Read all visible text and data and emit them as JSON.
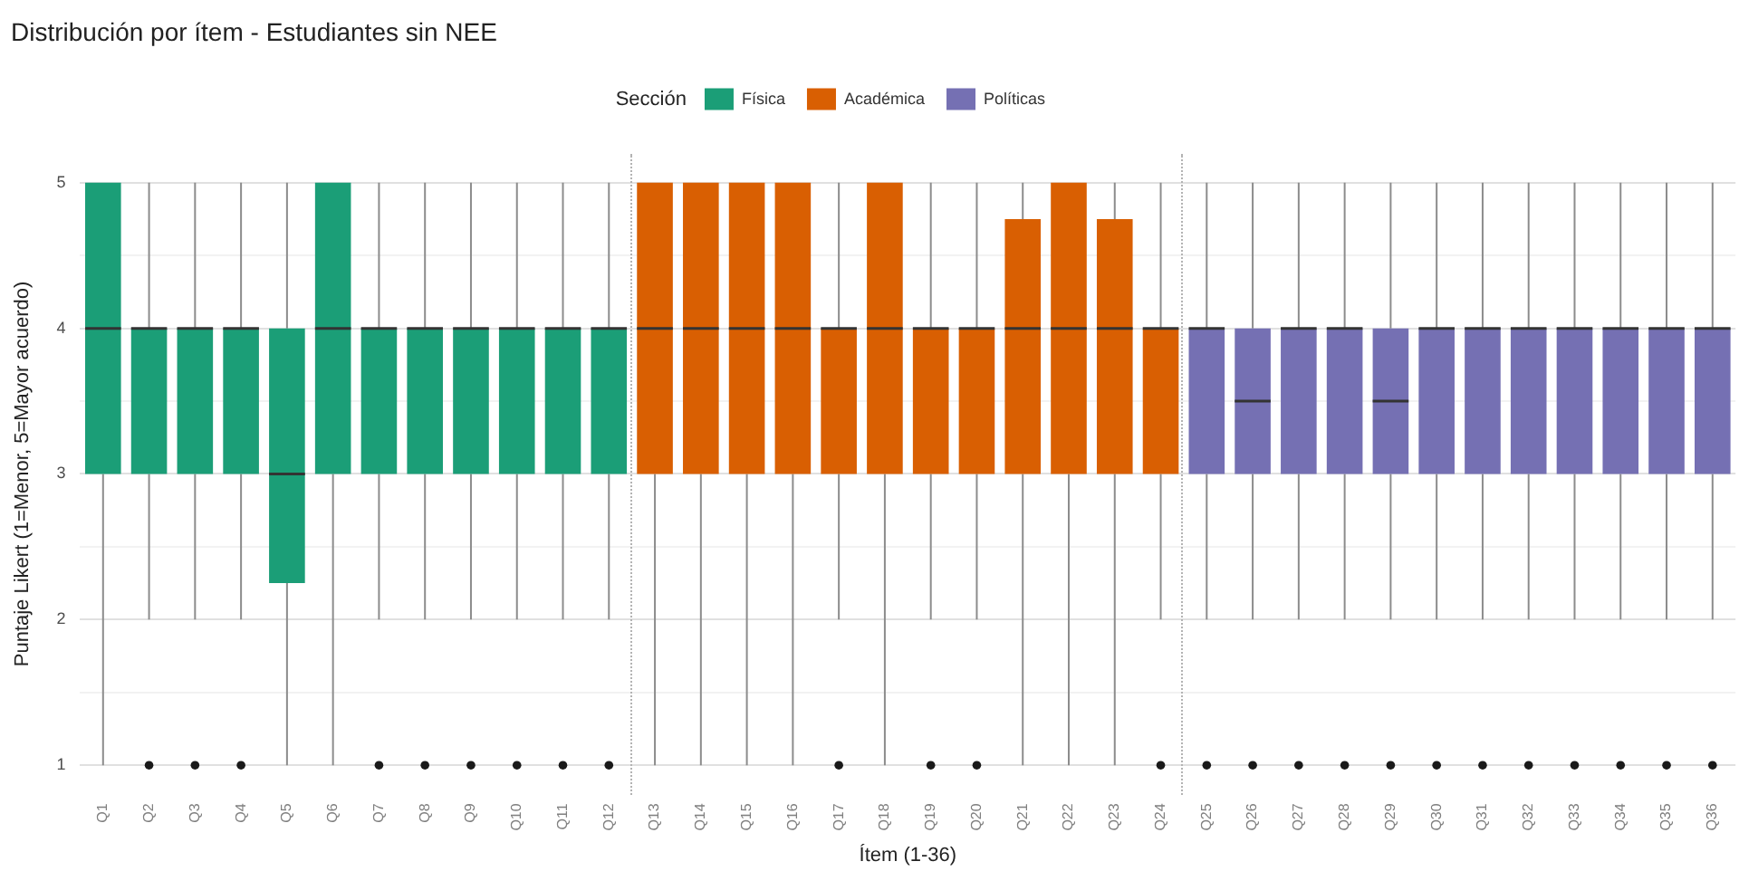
{
  "chart_data": {
    "type": "box",
    "title": "Distribución por ítem - Estudiantes sin NEE",
    "xlabel": "Ítem (1-36)",
    "ylabel": "Puntaje Likert (1=Menor, 5=Mayor acuerdo)",
    "legend_title": "Sección",
    "legend": "top",
    "grid": "y",
    "categories": [
      "Q1",
      "Q2",
      "Q3",
      "Q4",
      "Q5",
      "Q6",
      "Q7",
      "Q8",
      "Q9",
      "Q10",
      "Q11",
      "Q12",
      "Q13",
      "Q14",
      "Q15",
      "Q16",
      "Q17",
      "Q18",
      "Q19",
      "Q20",
      "Q21",
      "Q22",
      "Q23",
      "Q24",
      "Q25",
      "Q26",
      "Q27",
      "Q28",
      "Q29",
      "Q30",
      "Q31",
      "Q32",
      "Q33",
      "Q34",
      "Q35",
      "Q36"
    ],
    "series": [
      {
        "name": "Física",
        "color": "#1b9e77",
        "boxes": [
          {
            "low": 1,
            "q1": 3,
            "median": 4,
            "q3": 5,
            "high": 5
          },
          {
            "low": 2,
            "q1": 3,
            "median": 4,
            "q3": 4,
            "high": 5,
            "outliers": [
              1
            ]
          },
          {
            "low": 2,
            "q1": 3,
            "median": 4,
            "q3": 4,
            "high": 5,
            "outliers": [
              1
            ]
          },
          {
            "low": 2,
            "q1": 3,
            "median": 4,
            "q3": 4,
            "high": 5,
            "outliers": [
              1
            ]
          },
          {
            "low": 1,
            "q1": 2.25,
            "median": 3,
            "q3": 4,
            "high": 5
          },
          {
            "low": 1,
            "q1": 3,
            "median": 4,
            "q3": 5,
            "high": 5
          },
          {
            "low": 2,
            "q1": 3,
            "median": 4,
            "q3": 4,
            "high": 5,
            "outliers": [
              1
            ]
          },
          {
            "low": 2,
            "q1": 3,
            "median": 4,
            "q3": 4,
            "high": 5,
            "outliers": [
              1
            ]
          },
          {
            "low": 2,
            "q1": 3,
            "median": 4,
            "q3": 4,
            "high": 5,
            "outliers": [
              1
            ]
          },
          {
            "low": 2,
            "q1": 3,
            "median": 4,
            "q3": 4,
            "high": 5,
            "outliers": [
              1
            ]
          },
          {
            "low": 2,
            "q1": 3,
            "median": 4,
            "q3": 4,
            "high": 5,
            "outliers": [
              1
            ]
          },
          {
            "low": 2,
            "q1": 3,
            "median": 4,
            "q3": 4,
            "high": 5,
            "outliers": [
              1
            ]
          },
          null,
          null,
          null,
          null,
          null,
          null,
          null,
          null,
          null,
          null,
          null,
          null,
          null,
          null,
          null,
          null,
          null,
          null,
          null,
          null,
          null,
          null,
          null,
          null
        ]
      },
      {
        "name": "Académica",
        "color": "#d95f02",
        "boxes": [
          null,
          null,
          null,
          null,
          null,
          null,
          null,
          null,
          null,
          null,
          null,
          null,
          {
            "low": 1,
            "q1": 3,
            "median": 4,
            "q3": 5,
            "high": 5
          },
          {
            "low": 1,
            "q1": 3,
            "median": 4,
            "q3": 5,
            "high": 5
          },
          {
            "low": 1,
            "q1": 3,
            "median": 4,
            "q3": 5,
            "high": 5
          },
          {
            "low": 1,
            "q1": 3,
            "median": 4,
            "q3": 5,
            "high": 5
          },
          {
            "low": 2,
            "q1": 3,
            "median": 4,
            "q3": 4,
            "high": 5,
            "outliers": [
              1
            ]
          },
          {
            "low": 1,
            "q1": 3,
            "median": 4,
            "q3": 5,
            "high": 5
          },
          {
            "low": 2,
            "q1": 3,
            "median": 4,
            "q3": 4,
            "high": 5,
            "outliers": [
              1
            ]
          },
          {
            "low": 2,
            "q1": 3,
            "median": 4,
            "q3": 4,
            "high": 5,
            "outliers": [
              1
            ]
          },
          {
            "low": 1,
            "q1": 3,
            "median": 4,
            "q3": 4.75,
            "high": 5
          },
          {
            "low": 1,
            "q1": 3,
            "median": 4,
            "q3": 5,
            "high": 5
          },
          {
            "low": 1,
            "q1": 3,
            "median": 4,
            "q3": 4.75,
            "high": 5
          },
          {
            "low": 2,
            "q1": 3,
            "median": 4,
            "q3": 4,
            "high": 5,
            "outliers": [
              1
            ]
          },
          null,
          null,
          null,
          null,
          null,
          null,
          null,
          null,
          null,
          null,
          null,
          null
        ]
      },
      {
        "name": "Políticas",
        "color": "#7570b3",
        "boxes": [
          null,
          null,
          null,
          null,
          null,
          null,
          null,
          null,
          null,
          null,
          null,
          null,
          null,
          null,
          null,
          null,
          null,
          null,
          null,
          null,
          null,
          null,
          null,
          null,
          {
            "low": 2,
            "q1": 3,
            "median": 4,
            "q3": 4,
            "high": 5,
            "outliers": [
              1
            ]
          },
          {
            "low": 2,
            "q1": 3,
            "median": 3.5,
            "q3": 4,
            "high": 5,
            "outliers": [
              1
            ]
          },
          {
            "low": 2,
            "q1": 3,
            "median": 4,
            "q3": 4,
            "high": 5,
            "outliers": [
              1
            ]
          },
          {
            "low": 2,
            "q1": 3,
            "median": 4,
            "q3": 4,
            "high": 5,
            "outliers": [
              1
            ]
          },
          {
            "low": 2,
            "q1": 3,
            "median": 3.5,
            "q3": 4,
            "high": 5,
            "outliers": [
              1
            ]
          },
          {
            "low": 2,
            "q1": 3,
            "median": 4,
            "q3": 4,
            "high": 5,
            "outliers": [
              1
            ]
          },
          {
            "low": 2,
            "q1": 3,
            "median": 4,
            "q3": 4,
            "high": 5,
            "outliers": [
              1
            ]
          },
          {
            "low": 2,
            "q1": 3,
            "median": 4,
            "q3": 4,
            "high": 5,
            "outliers": [
              1
            ]
          },
          {
            "low": 2,
            "q1": 3,
            "median": 4,
            "q3": 4,
            "high": 5,
            "outliers": [
              1
            ]
          },
          {
            "low": 2,
            "q1": 3,
            "median": 4,
            "q3": 4,
            "high": 5,
            "outliers": [
              1
            ]
          },
          {
            "low": 2,
            "q1": 3,
            "median": 4,
            "q3": 4,
            "high": 5,
            "outliers": [
              1
            ]
          },
          {
            "low": 2,
            "q1": 3,
            "median": 4,
            "q3": 4,
            "high": 5,
            "outliers": [
              1
            ]
          }
        ]
      }
    ],
    "ylim": [
      0.8,
      5.2
    ],
    "yticks": [
      1,
      {
        "value": 1.5,
        "label": null
      },
      2,
      {
        "value": 2.5,
        "label": null
      },
      3,
      {
        "value": 3.5,
        "label": null
      },
      4,
      {
        "value": 4.5,
        "label": null
      },
      5
    ]
  }
}
